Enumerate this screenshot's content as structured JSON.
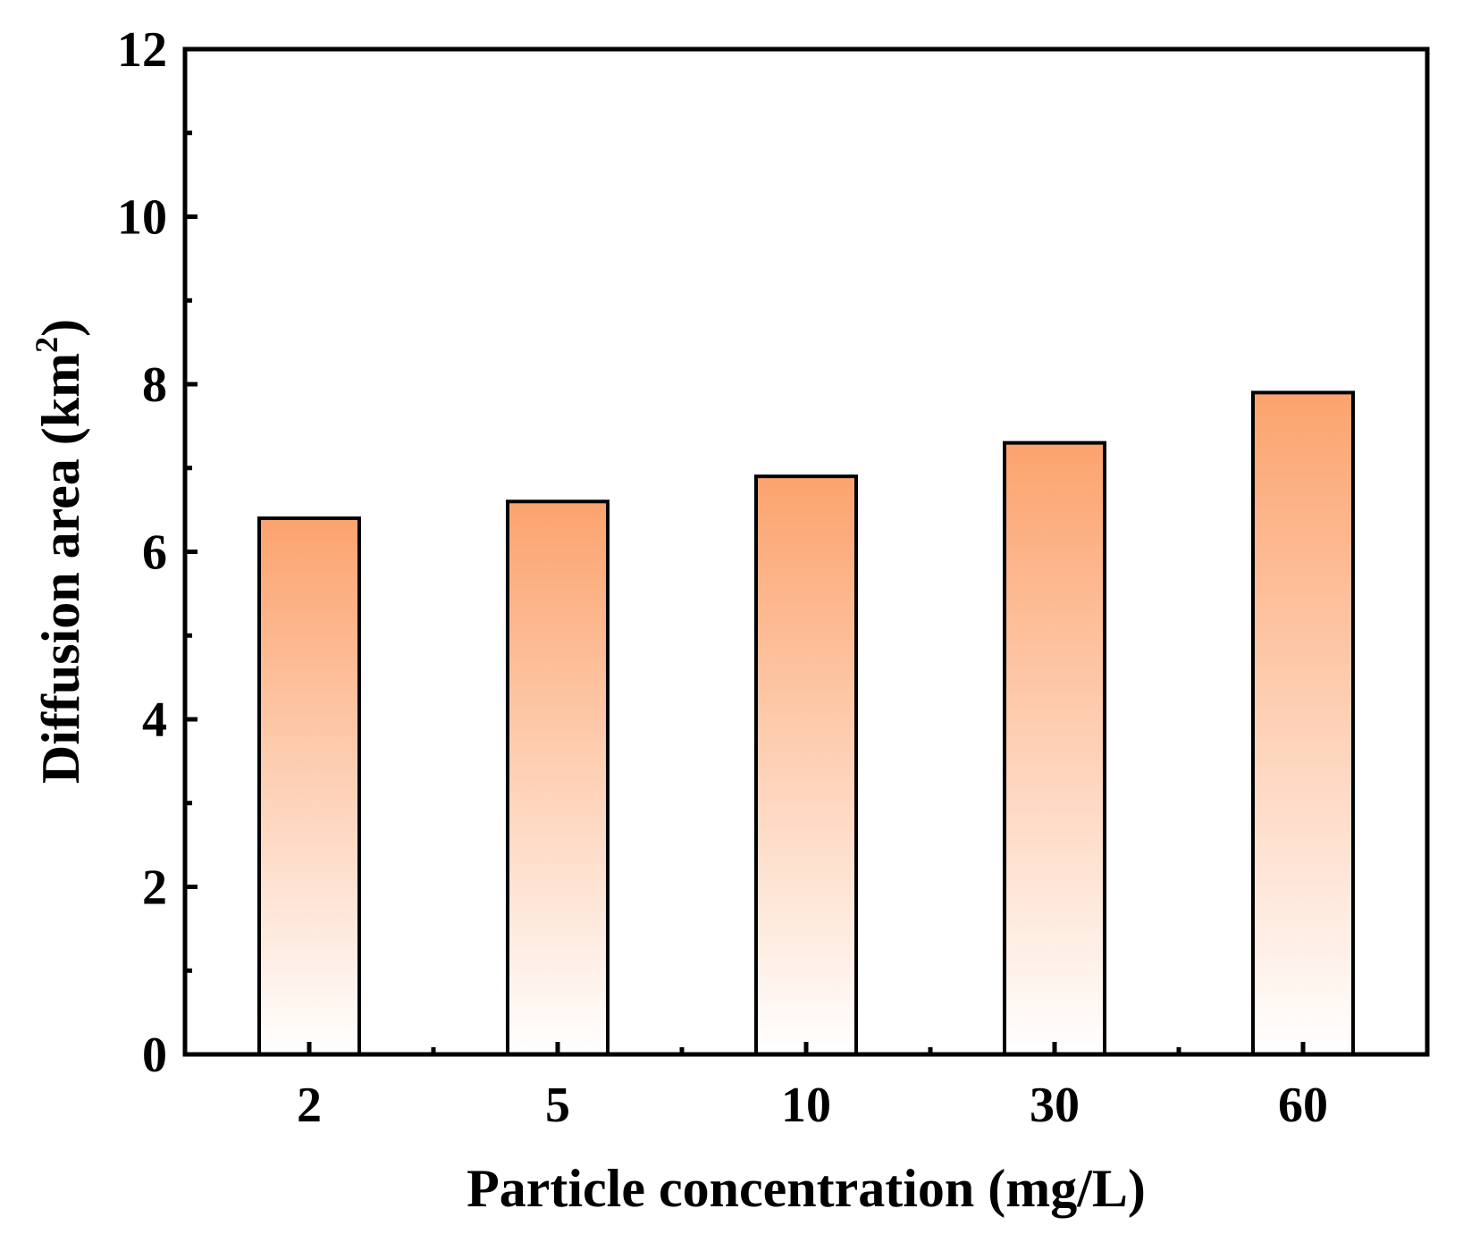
{
  "chart_data": {
    "type": "bar",
    "title": "",
    "categories": [
      "2",
      "5",
      "10",
      "30",
      "60"
    ],
    "values": [
      6.4,
      6.6,
      6.9,
      7.3,
      7.9
    ],
    "xlabel": "Particle concentration (mg/L)",
    "ylabel_main": "Diffusion area (km",
    "ylabel_sup": "2",
    "ylabel_close": ")",
    "ylim": [
      0,
      12
    ],
    "yticks": [
      "0",
      "2",
      "4",
      "6",
      "8",
      "10",
      "12"
    ],
    "ytick_values": [
      0,
      2,
      4,
      6,
      8,
      10,
      12
    ],
    "grid": false,
    "bar_gradient_top": "#fca36e",
    "bar_gradient_bottom": "#ffffff",
    "bar_edge_color": "#000000"
  }
}
